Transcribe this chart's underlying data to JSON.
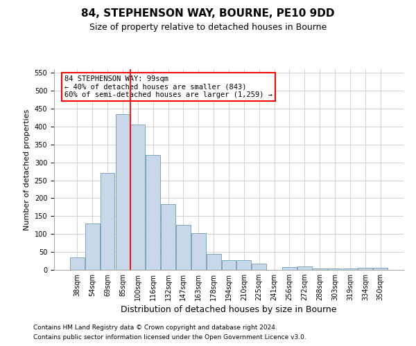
{
  "title1": "84, STEPHENSON WAY, BOURNE, PE10 9DD",
  "title2": "Size of property relative to detached houses in Bourne",
  "xlabel": "Distribution of detached houses by size in Bourne",
  "ylabel": "Number of detached properties",
  "categories": [
    "38sqm",
    "54sqm",
    "69sqm",
    "85sqm",
    "100sqm",
    "116sqm",
    "132sqm",
    "147sqm",
    "163sqm",
    "178sqm",
    "194sqm",
    "210sqm",
    "225sqm",
    "241sqm",
    "256sqm",
    "272sqm",
    "288sqm",
    "303sqm",
    "319sqm",
    "334sqm",
    "350sqm"
  ],
  "bar_values": [
    35,
    130,
    270,
    435,
    405,
    320,
    183,
    125,
    103,
    45,
    28,
    28,
    17,
    0,
    8,
    10,
    3,
    3,
    3,
    5,
    5
  ],
  "bar_color": "#c8d8e8",
  "bar_edge_color": "#6a9ab5",
  "vline_color": "red",
  "vline_pos": 3.5,
  "ylim": [
    0,
    560
  ],
  "yticks": [
    0,
    50,
    100,
    150,
    200,
    250,
    300,
    350,
    400,
    450,
    500,
    550
  ],
  "annotation_text": "84 STEPHENSON WAY: 99sqm\n← 40% of detached houses are smaller (843)\n60% of semi-detached houses are larger (1,259) →",
  "annotation_box_color": "white",
  "annotation_box_edge_color": "red",
  "footer1": "Contains HM Land Registry data © Crown copyright and database right 2024.",
  "footer2": "Contains public sector information licensed under the Open Government Licence v3.0.",
  "bg_color": "white",
  "grid_color": "#cccccc",
  "title1_fontsize": 11,
  "title2_fontsize": 9,
  "ylabel_fontsize": 8,
  "xlabel_fontsize": 9,
  "tick_fontsize": 7,
  "annot_fontsize": 7.5,
  "footer_fontsize": 6.5
}
